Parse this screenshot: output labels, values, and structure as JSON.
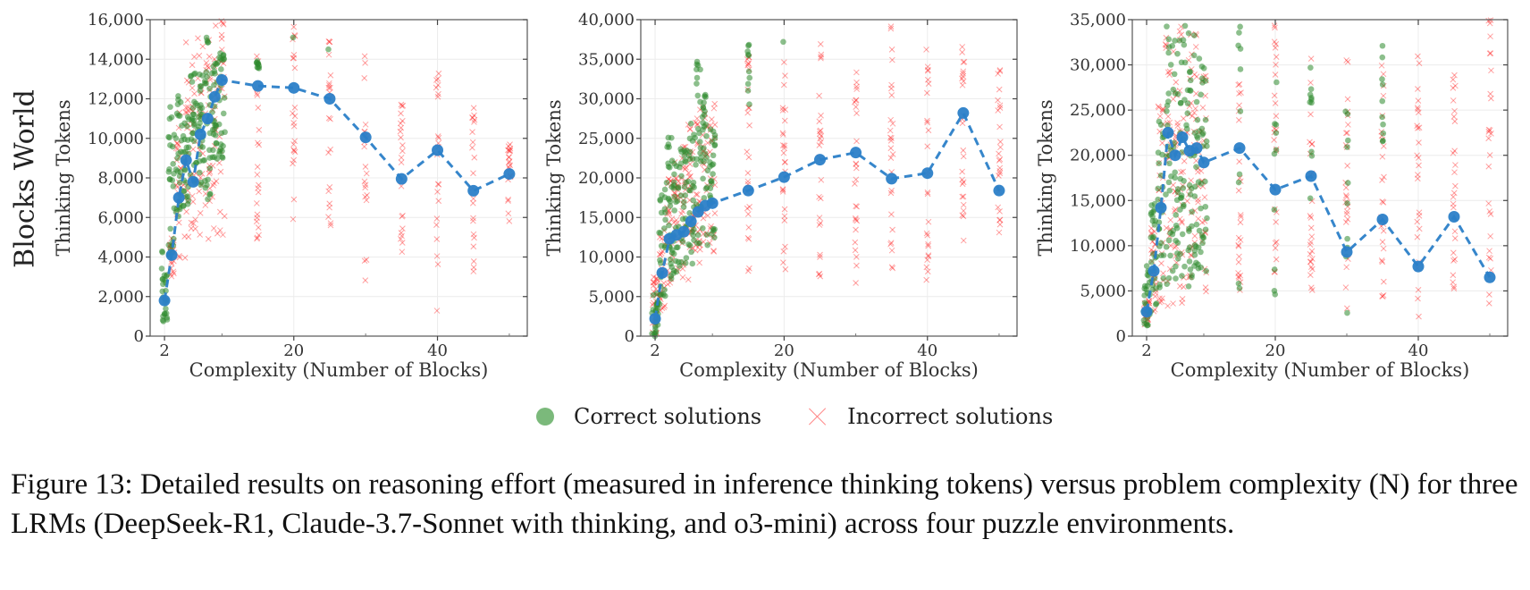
{
  "row_label": "Blocks World",
  "legend": {
    "correct": "Correct solutions",
    "incorrect": "Incorrect solutions"
  },
  "caption": "Figure 13: Detailed results on reasoning effort (measured in inference thinking tokens) versus problem complexity (N) for three LRMs (DeepSeek-R1, Claude-3.7-Sonnet with thinking, and o3-mini) across four puzzle environments.",
  "colors": {
    "mean": "#2b7fc8",
    "correct": "#2e8b2e",
    "incorrect": "#ff3030"
  },
  "chart_data": [
    {
      "type": "scatter",
      "title": "",
      "xlabel": "Complexity (Number of Blocks)",
      "ylabel": "Thinking Tokens",
      "xlim": [
        0,
        52.5
      ],
      "ylim": [
        0,
        16000
      ],
      "xticks": [
        2,
        20,
        40
      ],
      "yticks": [
        0,
        2000,
        4000,
        6000,
        8000,
        10000,
        12000,
        14000,
        16000
      ],
      "ytick_labels": [
        "0",
        "2,000",
        "4,000",
        "6,000",
        "8,000",
        "10,000",
        "12,000",
        "14,000",
        "16,000"
      ],
      "grid": true,
      "x": [
        2,
        3,
        4,
        5,
        6,
        7,
        8,
        9,
        10,
        15,
        20,
        25,
        30,
        35,
        40,
        45,
        50
      ],
      "series": [
        {
          "name": "Mean thinking tokens",
          "style": "dashed-line-with-markers",
          "values": [
            1800,
            4100,
            7000,
            8900,
            7800,
            10200,
            11000,
            12100,
            12950,
            12650,
            12550,
            12000,
            10050,
            7950,
            9400,
            7350,
            8200
          ]
        }
      ],
      "scatter_ranges": {
        "correct": [
          [
            700,
            4700
          ],
          [
            4000,
            12300
          ],
          [
            5000,
            12300
          ],
          [
            6500,
            11100
          ],
          [
            7500,
            13500
          ],
          [
            7600,
            13700
          ],
          [
            6900,
            15700
          ],
          [
            8000,
            14000
          ],
          [
            8900,
            14500
          ],
          [
            13500,
            14000
          ],
          [
            15100,
            15100
          ],
          [
            14500,
            14500
          ],
          null,
          null,
          null,
          null,
          null
        ],
        "incorrect": [
          [
            null,
            null
          ],
          [
            2700,
            5000
          ],
          [
            3800,
            12000
          ],
          [
            3800,
            14900
          ],
          [
            4200,
            14400
          ],
          [
            4500,
            15300
          ],
          [
            4500,
            15900
          ],
          [
            4500,
            16000
          ],
          [
            4600,
            16000
          ],
          [
            4700,
            15700
          ],
          [
            5000,
            16000
          ],
          [
            3700,
            15300
          ],
          [
            2700,
            14800
          ],
          [
            3000,
            12600
          ],
          [
            1100,
            13400
          ],
          [
            2200,
            11700
          ],
          [
            5800,
            9800
          ]
        ]
      }
    },
    {
      "type": "scatter",
      "title": "",
      "xlabel": "Complexity (Number of Blocks)",
      "ylabel": "Thinking Tokens",
      "xlim": [
        0,
        52.5
      ],
      "ylim": [
        0,
        40000
      ],
      "xticks": [
        2,
        20,
        40
      ],
      "yticks": [
        0,
        5000,
        10000,
        15000,
        20000,
        25000,
        30000,
        35000,
        40000
      ],
      "ytick_labels": [
        "0",
        "5,000",
        "10,000",
        "15,000",
        "20,000",
        "25,000",
        "30,000",
        "35,000",
        "40,000"
      ],
      "grid": true,
      "x": [
        2,
        3,
        4,
        5,
        6,
        7,
        8,
        9,
        10,
        15,
        20,
        25,
        30,
        35,
        40,
        45,
        50
      ],
      "series": [
        {
          "name": "Mean thinking tokens",
          "style": "dashed-line-with-markers",
          "values": [
            2200,
            8000,
            12300,
            12800,
            13200,
            14500,
            15700,
            16500,
            16800,
            18400,
            20100,
            22300,
            23200,
            19900,
            20600,
            28200,
            18400
          ]
        }
      ],
      "scatter_ranges": {
        "correct": [
          [
            0,
            5500
          ],
          [
            4000,
            20000
          ],
          [
            7000,
            26000
          ],
          [
            7000,
            22000
          ],
          [
            8000,
            24000
          ],
          [
            9000,
            28000
          ],
          [
            10000,
            34800
          ],
          [
            11000,
            30800
          ],
          [
            12000,
            27000
          ],
          [
            29000,
            37000
          ],
          [
            37200,
            37200
          ],
          null,
          null,
          null,
          null,
          null,
          null
        ],
        "incorrect": [
          [
            0,
            8000
          ],
          [
            3000,
            14000
          ],
          [
            5000,
            20000
          ],
          [
            6000,
            22000
          ],
          [
            7000,
            24000
          ],
          [
            7000,
            27000
          ],
          [
            8000,
            29000
          ],
          [
            8500,
            30000
          ],
          [
            9000,
            30000
          ],
          [
            7000,
            36000
          ],
          [
            6500,
            36000
          ],
          [
            7000,
            37500
          ],
          [
            6000,
            34000
          ],
          [
            7500,
            39500
          ],
          [
            7000,
            36500
          ],
          [
            11500,
            39000
          ],
          [
            11500,
            34000
          ]
        ]
      }
    },
    {
      "type": "scatter",
      "title": "",
      "xlabel": "Complexity (Number of Blocks)",
      "ylabel": "Thinking Tokens",
      "xlim": [
        0,
        52.5
      ],
      "ylim": [
        0,
        35000
      ],
      "xticks": [
        2,
        20,
        40
      ],
      "yticks": [
        0,
        5000,
        10000,
        15000,
        20000,
        25000,
        30000,
        35000
      ],
      "ytick_labels": [
        "0",
        "5,000",
        "10,000",
        "15,000",
        "20,000",
        "25,000",
        "30,000",
        "35,000"
      ],
      "grid": true,
      "x": [
        2,
        3,
        4,
        5,
        6,
        7,
        8,
        9,
        10,
        15,
        20,
        25,
        30,
        35,
        40,
        45,
        50
      ],
      "series": [
        {
          "name": "Mean thinking tokens",
          "style": "dashed-line-with-markers",
          "values": [
            2700,
            7200,
            14200,
            22500,
            20000,
            22000,
            20500,
            20800,
            19200,
            20800,
            16200,
            17700,
            9300,
            12900,
            7700,
            13200,
            6500
          ]
        }
      ],
      "scatter_ranges": {
        "correct": [
          [
            800,
            8000
          ],
          [
            2000,
            15000
          ],
          [
            4000,
            23800
          ],
          [
            5000,
            35000
          ],
          [
            6000,
            34000
          ],
          [
            5500,
            35000
          ],
          [
            5000,
            35000
          ],
          [
            6000,
            34000
          ],
          [
            7000,
            30000
          ],
          [
            5000,
            34500
          ],
          [
            4000,
            31800
          ],
          [
            13000,
            34700
          ],
          [
            2500,
            26500
          ],
          [
            21500,
            32600
          ],
          null,
          null,
          null
        ],
        "incorrect": [
          [
            1000,
            4000
          ],
          [
            2500,
            12000
          ],
          [
            3000,
            26000
          ],
          [
            3000,
            33000
          ],
          [
            3000,
            32000
          ],
          [
            2700,
            35000
          ],
          [
            2800,
            35000
          ],
          [
            3500,
            34000
          ],
          [
            4000,
            30000
          ],
          [
            5000,
            30000
          ],
          [
            3500,
            35000
          ],
          [
            3000,
            32000
          ],
          [
            1600,
            32000
          ],
          [
            1800,
            30000
          ],
          [
            2000,
            32000
          ],
          [
            2200,
            30000
          ],
          [
            3500,
            35000
          ]
        ]
      }
    }
  ]
}
